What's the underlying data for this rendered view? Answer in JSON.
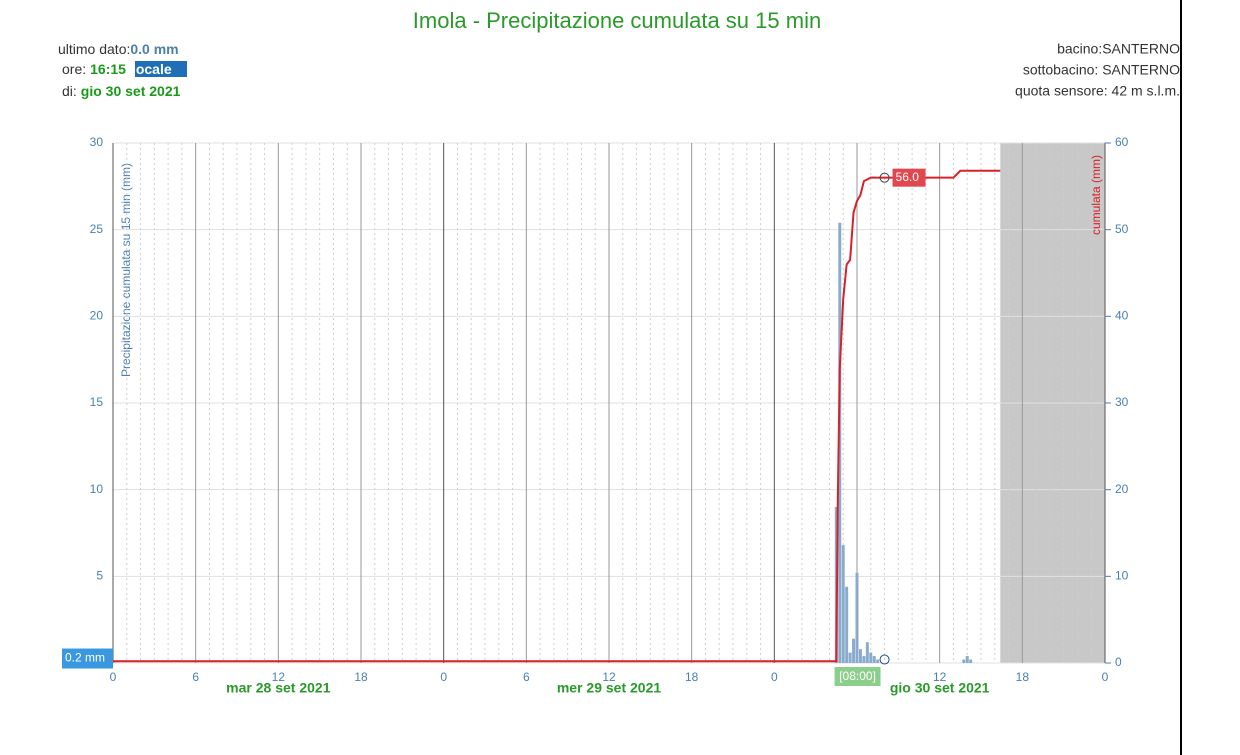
{
  "header": {
    "last_label": "ultimo dato:",
    "last_value": "0.0 mm",
    "time_label": "ore:",
    "time_value": "16:15",
    "time_zone": "locale",
    "date_label": "di:",
    "date_value": "gio 30 set 2021",
    "basin": "bacino:SANTERNO",
    "subbasin": "sottobacino: SANTERNO",
    "altitude": "quota sensore: 42 m s.l.m."
  },
  "chart_data": {
    "type": "combo",
    "title": "Imola - Precipitazione cumulata su 15 min",
    "y_label": "Precipitazione cumulata su 15 min (mm)",
    "y2_label": "cumulata (mm)",
    "xlim": [
      0,
      72
    ],
    "xticks": [
      0,
      6,
      12,
      18,
      {
        "value": 24,
        "label": "0"
      },
      {
        "value": 30,
        "label": "6"
      },
      {
        "value": 36,
        "label": "12"
      },
      {
        "value": 42,
        "label": "18"
      },
      {
        "value": 48,
        "label": "0"
      },
      {
        "value": 54,
        "label": "6"
      },
      {
        "value": 60,
        "label": "12"
      },
      {
        "value": 66,
        "label": "18"
      },
      {
        "value": 72,
        "label": "0"
      }
    ],
    "date_labels": [
      {
        "value": 12,
        "label": "mar 28 set 2021"
      },
      {
        "value": 36,
        "label": "mer 29 set 2021"
      },
      {
        "value": 60,
        "label": "gio 30 set 2021"
      }
    ],
    "ylim": [
      0,
      30
    ],
    "yticks": [
      0,
      5,
      10,
      15,
      20,
      25,
      30
    ],
    "y2lim": [
      0,
      60
    ],
    "y2ticks": [
      0,
      10,
      20,
      30,
      40,
      50,
      60
    ],
    "grid": true,
    "shaded_region": [
      64.4,
      72
    ],
    "series": [
      {
        "type": "bar",
        "color": "#8aaccc",
        "x": [
          52.5,
          52.75,
          53.0,
          53.25,
          53.5,
          53.75,
          54.0,
          54.25,
          54.5,
          54.75,
          55.0,
          55.25,
          55.5,
          61.75,
          62.0,
          62.25
        ],
        "values": [
          9,
          25.4,
          6.8,
          4.4,
          0.6,
          1.4,
          5.2,
          0.8,
          0.4,
          1.2,
          0.6,
          0.4,
          0.2,
          0.2,
          0.4,
          0.2
        ]
      },
      {
        "type": "line",
        "axis": "y2",
        "color": "#d9202a",
        "x": [
          0,
          52.5,
          52.6,
          52.75,
          53.0,
          53.25,
          53.5,
          53.75,
          54.0,
          54.25,
          54.5,
          55.0,
          56.0,
          61.0,
          61.5,
          64.4
        ],
        "values": [
          0.2,
          0.2,
          18,
          34,
          42,
          46,
          46.5,
          52,
          53.3,
          54,
          55.6,
          56,
          56,
          56,
          56.8,
          56.8
        ]
      }
    ],
    "crosshair": {
      "x": 56,
      "x_label": "[08:00]",
      "y": 0.2,
      "y_label": "0.2 mm",
      "y2": 56.0,
      "y2_label": "56.0"
    }
  }
}
